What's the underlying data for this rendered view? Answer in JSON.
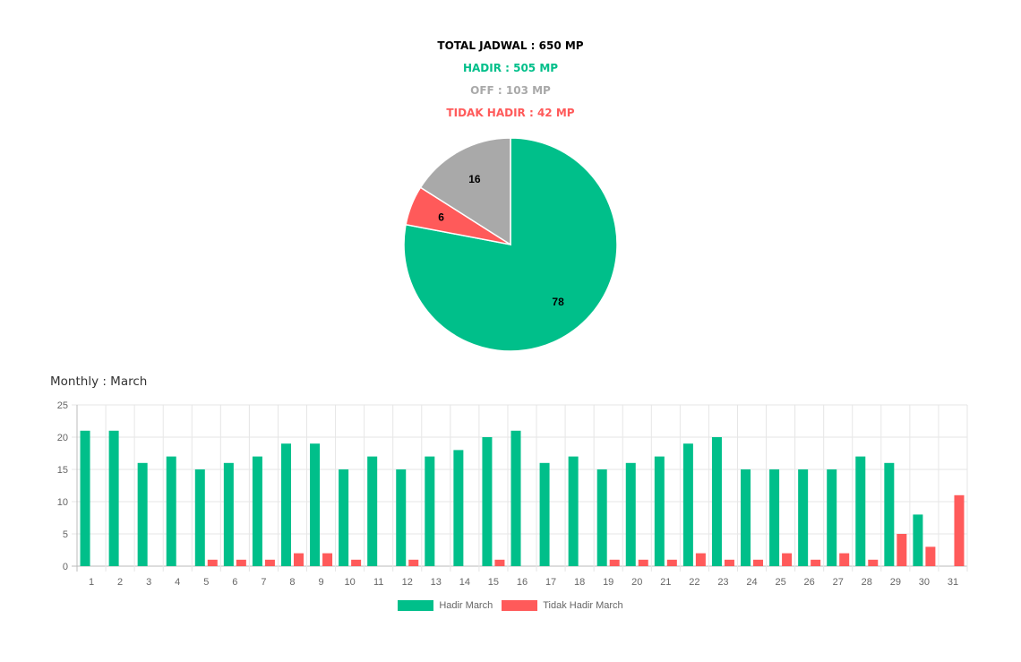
{
  "summary": {
    "total": "TOTAL JADWAL : 650 MP",
    "hadir": "HADIR : 505 MP",
    "off": "OFF : 103 MP",
    "tidak_hadir": "TIDAK HADIR : 42 MP"
  },
  "colors": {
    "hadir": "#00BF8A",
    "off": "#A9A9A9",
    "tidak_hadir": "#FF5A5A",
    "total": "#000000"
  },
  "chart_data": [
    {
      "type": "pie",
      "slices": [
        {
          "label": "Hadir",
          "value": 78,
          "color": "#00BF8A"
        },
        {
          "label": "Tidak Hadir",
          "value": 6,
          "color": "#FF5A5A"
        },
        {
          "label": "Off",
          "value": 16,
          "color": "#A9A9A9"
        }
      ]
    },
    {
      "type": "bar",
      "title": "Monthly : March",
      "categories": [
        "1",
        "2",
        "3",
        "4",
        "5",
        "6",
        "7",
        "8",
        "9",
        "10",
        "11",
        "12",
        "13",
        "14",
        "15",
        "16",
        "17",
        "18",
        "19",
        "20",
        "21",
        "22",
        "23",
        "24",
        "25",
        "26",
        "27",
        "28",
        "29",
        "30",
        "31"
      ],
      "series": [
        {
          "name": "Hadir March",
          "color": "#00BF8A",
          "values": [
            21,
            21,
            16,
            17,
            15,
            16,
            17,
            19,
            19,
            15,
            17,
            15,
            17,
            18,
            20,
            21,
            16,
            17,
            15,
            16,
            17,
            19,
            20,
            15,
            15,
            15,
            15,
            17,
            16,
            8,
            0
          ]
        },
        {
          "name": "Tidak Hadir March",
          "color": "#FF5A5A",
          "values": [
            0,
            0,
            0,
            0,
            1,
            1,
            1,
            2,
            2,
            1,
            0,
            1,
            0,
            0,
            1,
            0,
            0,
            0,
            1,
            1,
            1,
            2,
            1,
            1,
            2,
            1,
            2,
            1,
            5,
            3,
            11
          ]
        }
      ],
      "yticks": [
        "0",
        "5",
        "10",
        "15",
        "20",
        "25"
      ],
      "ylim": [
        0,
        25
      ],
      "grid": true,
      "legend": "bottom"
    }
  ]
}
